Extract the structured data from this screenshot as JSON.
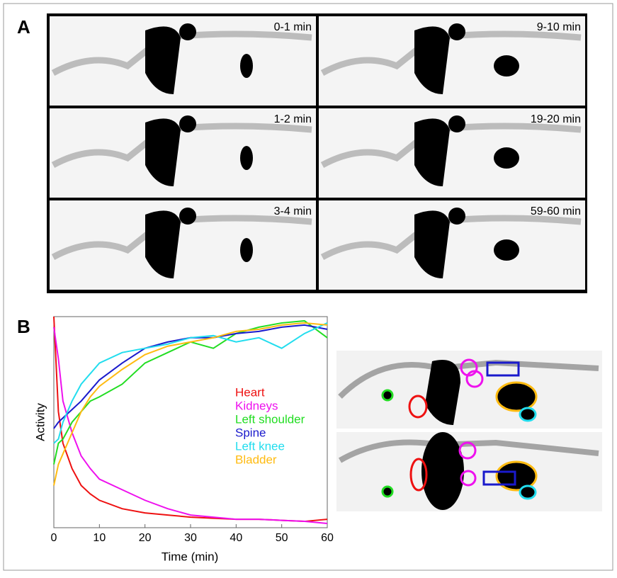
{
  "panel_a": {
    "label": "A",
    "frames": [
      "0-1 min",
      "9-10 min",
      "1-2 min",
      "19-20 min",
      "3-4 min",
      "59-60 min"
    ]
  },
  "panel_b": {
    "label": "B"
  },
  "chart_data": {
    "type": "line",
    "xlabel": "Time (min)",
    "ylabel": "Activity",
    "x": [
      0,
      1,
      2,
      4,
      6,
      8,
      10,
      15,
      20,
      25,
      30,
      35,
      40,
      45,
      50,
      55,
      60
    ],
    "xlim": [
      0,
      60
    ],
    "xticks": [
      0,
      10,
      20,
      30,
      40,
      50,
      60
    ],
    "ylim": [
      0,
      1
    ],
    "series": [
      {
        "name": "Heart",
        "color": "#ee1111",
        "values": [
          1,
          0.55,
          0.4,
          0.28,
          0.2,
          0.16,
          0.13,
          0.09,
          0.07,
          0.06,
          0.05,
          0.045,
          0.04,
          0.04,
          0.035,
          0.03,
          0.04
        ]
      },
      {
        "name": "Kidneys",
        "color": "#ee11ee",
        "values": [
          0.95,
          0.8,
          0.6,
          0.45,
          0.34,
          0.28,
          0.23,
          0.18,
          0.13,
          0.09,
          0.06,
          0.05,
          0.04,
          0.04,
          0.035,
          0.03,
          0.02
        ]
      },
      {
        "name": "Left shoulder",
        "color": "#22dd22",
        "values": [
          0.3,
          0.4,
          0.42,
          0.5,
          0.55,
          0.6,
          0.62,
          0.68,
          0.78,
          0.83,
          0.88,
          0.85,
          0.92,
          0.95,
          0.97,
          0.98,
          0.9
        ]
      },
      {
        "name": "Spine",
        "color": "#1a1acc",
        "values": [
          0.47,
          0.5,
          0.52,
          0.56,
          0.6,
          0.65,
          0.7,
          0.78,
          0.85,
          0.88,
          0.9,
          0.9,
          0.92,
          0.93,
          0.95,
          0.96,
          0.94
        ]
      },
      {
        "name": "Left knee",
        "color": "#22ddee",
        "values": [
          0.4,
          0.42,
          0.5,
          0.6,
          0.68,
          0.73,
          0.78,
          0.83,
          0.85,
          0.87,
          0.9,
          0.91,
          0.88,
          0.9,
          0.85,
          0.92,
          0.97
        ]
      },
      {
        "name": "Bladder",
        "color": "#ffbb11",
        "values": [
          0.2,
          0.3,
          0.35,
          0.45,
          0.55,
          0.62,
          0.67,
          0.75,
          0.82,
          0.86,
          0.88,
          0.9,
          0.93,
          0.94,
          0.96,
          0.97,
          0.96
        ]
      }
    ]
  }
}
